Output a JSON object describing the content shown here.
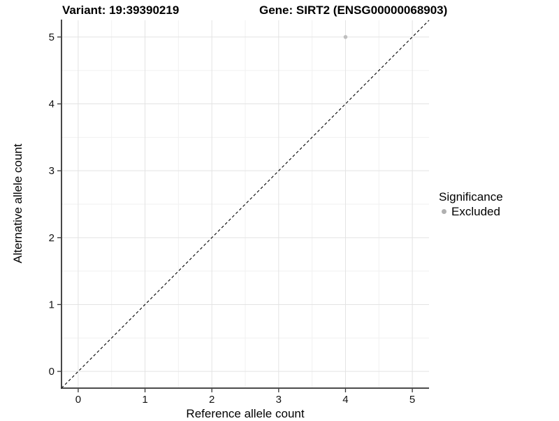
{
  "header": {
    "variant_title": "Variant: 19:39390219",
    "gene_title": "Gene: SIRT2 (ENSG00000068903)"
  },
  "axes": {
    "x_label": "Reference allele count",
    "y_label": "Alternative allele count"
  },
  "legend": {
    "title": "Significance",
    "items": [
      {
        "label": "Excluded",
        "color": "#b0b0b0",
        "marker": "circle"
      }
    ]
  },
  "chart_data": {
    "type": "scatter",
    "title": "Variant: 19:39390219 | Gene: SIRT2 (ENSG00000068903)",
    "xlabel": "Reference allele count",
    "ylabel": "Alternative allele count",
    "xlim": [
      -0.25,
      5.25
    ],
    "ylim": [
      -0.25,
      5.25
    ],
    "x_ticks": [
      0,
      1,
      2,
      3,
      4,
      5
    ],
    "y_ticks": [
      0,
      1,
      2,
      3,
      4,
      5
    ],
    "x_minor_ticks": [
      0.5,
      1.5,
      2.5,
      3.5,
      4.5
    ],
    "y_minor_ticks": [
      0.5,
      1.5,
      2.5,
      3.5,
      4.5
    ],
    "grid": "major-and-minor",
    "legend_position": "right",
    "series": [
      {
        "name": "Excluded",
        "color": "#bebebe",
        "points": [
          {
            "x": 4,
            "y": 5
          }
        ]
      }
    ],
    "reference_line": {
      "kind": "identity",
      "slope": 1,
      "intercept": 0,
      "style": "dashed",
      "color": "#000000"
    }
  },
  "style": {
    "background": "#ffffff",
    "grid_major_color": "#e3e3e3",
    "grid_minor_color": "#f1f1f1",
    "axis_line_color": "#333333",
    "tick_color": "#333333",
    "point_radius": 2.8,
    "dash_pattern": "4 3.2"
  }
}
